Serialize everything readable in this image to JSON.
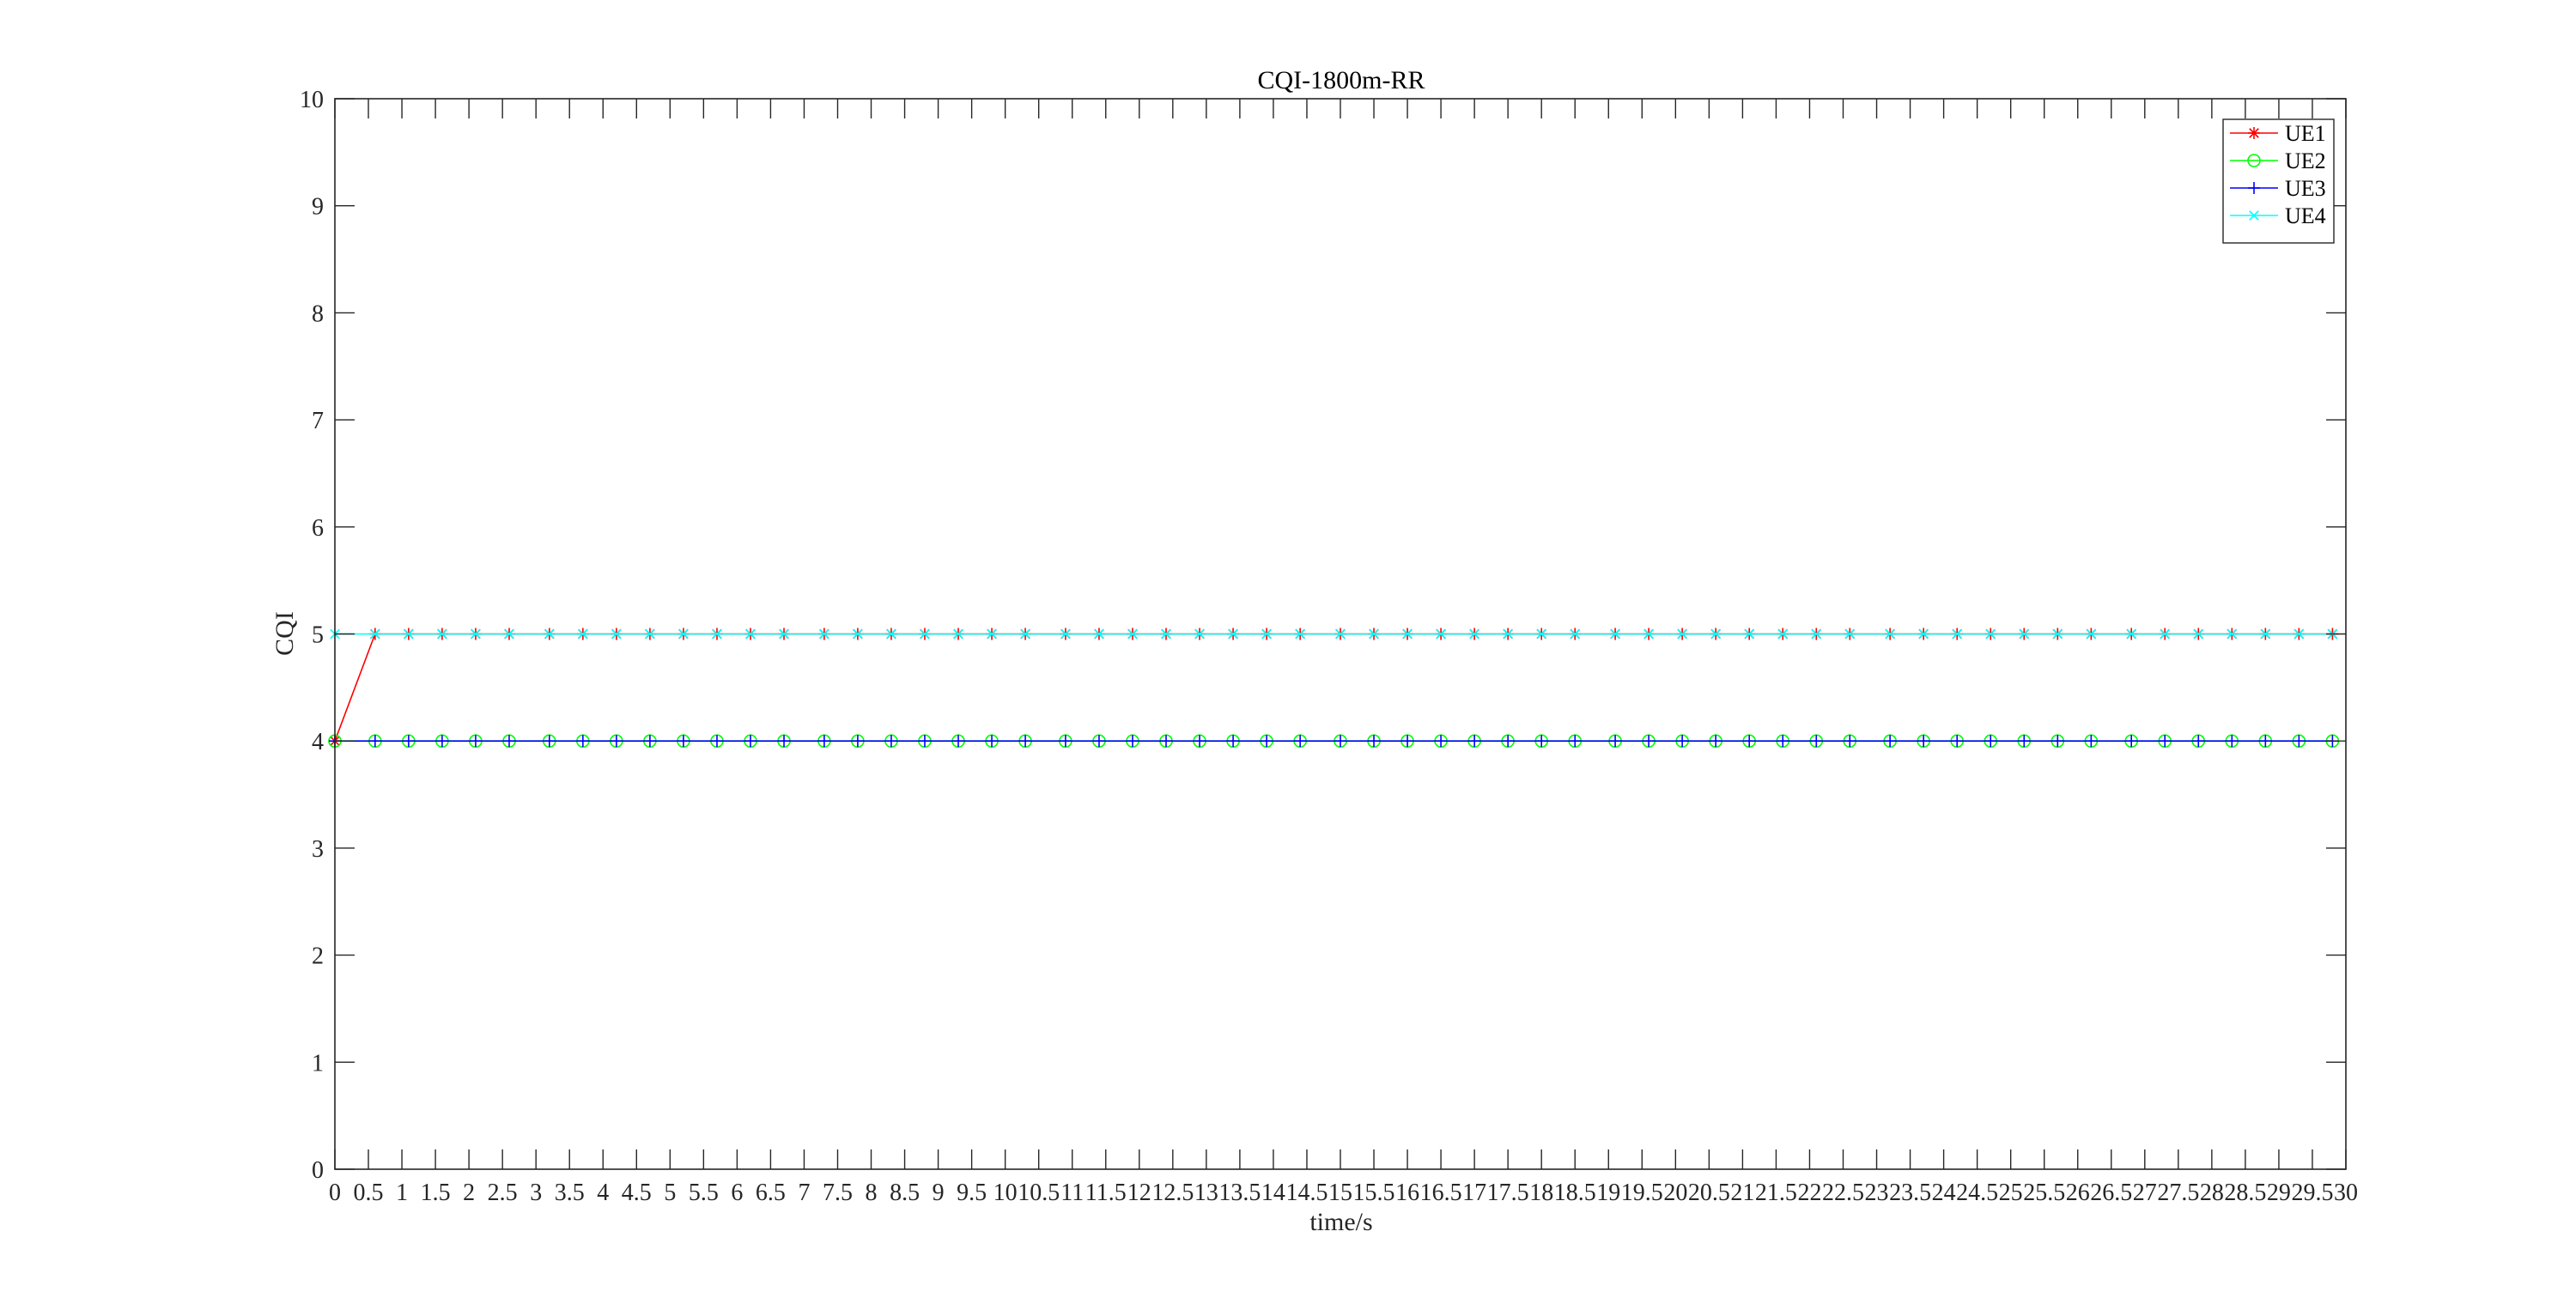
{
  "chart_data": {
    "type": "line",
    "title": "CQI-1800m-RR",
    "xlabel": "time/s",
    "ylabel": "CQI",
    "xlim": [
      0,
      30
    ],
    "ylim": [
      0,
      10
    ],
    "x_ticks": [
      0,
      0.5,
      1,
      1.5,
      2,
      2.5,
      3,
      3.5,
      4,
      4.5,
      5,
      5.5,
      6,
      6.5,
      7,
      7.5,
      8,
      8.5,
      9,
      9.5,
      10,
      10.5,
      11,
      11.5,
      12,
      12.5,
      13,
      13.5,
      14,
      14.5,
      15,
      15.5,
      16,
      16.5,
      17,
      17.5,
      18,
      18.5,
      19,
      19.5,
      20,
      20.5,
      21,
      21.5,
      22,
      22.5,
      23,
      23.5,
      24,
      24.5,
      25,
      25.5,
      26,
      26.5,
      27,
      27.5,
      28,
      28.5,
      29,
      29.5,
      30
    ],
    "x_tick_labels": [
      "0",
      "0.5",
      "1",
      "1.5",
      "2",
      "2.5",
      "3",
      "3.5",
      "4",
      "4.5",
      "5",
      "5.5",
      "6",
      "6.5",
      "7",
      "7.5",
      "8",
      "8.5",
      "9",
      "9.5",
      "10",
      "10.5",
      "11",
      "11.5",
      "12",
      "12.5",
      "13",
      "13.5",
      "14",
      "14.5",
      "15",
      "15.5",
      "16",
      "16.5",
      "17",
      "17.5",
      "18",
      "18.5",
      "19",
      "19.5",
      "20",
      "20.5",
      "21",
      "21.5",
      "22",
      "22.5",
      "23",
      "23.5",
      "24",
      "24.5",
      "25",
      "25.5",
      "26",
      "26.5",
      "27",
      "27.5",
      "28",
      "28.5",
      "29",
      "29.5",
      "30"
    ],
    "y_ticks": [
      0,
      1,
      2,
      3,
      4,
      5,
      6,
      7,
      8,
      9,
      10
    ],
    "y_tick_labels": [
      "0",
      "1",
      "2",
      "3",
      "4",
      "5",
      "6",
      "7",
      "8",
      "9",
      "10"
    ],
    "grid": false,
    "legend_position": "top-right",
    "x": [
      0,
      0.6,
      1.1,
      1.6,
      2.1,
      2.6,
      3.2,
      3.7,
      4.2,
      4.7,
      5.2,
      5.7,
      6.2,
      6.7,
      7.3,
      7.8,
      8.3,
      8.8,
      9.3,
      9.8,
      10.3,
      10.9,
      11.4,
      11.9,
      12.4,
      12.9,
      13.4,
      13.9,
      14.4,
      15.0,
      15.5,
      16.0,
      16.5,
      17.0,
      17.5,
      18.0,
      18.5,
      19.1,
      19.6,
      20.1,
      20.6,
      21.1,
      21.6,
      22.1,
      22.6,
      23.2,
      23.7,
      24.2,
      24.7,
      25.2,
      25.7,
      26.2,
      26.8,
      27.3,
      27.8,
      28.3,
      28.8,
      29.3,
      29.8
    ],
    "series": [
      {
        "name": "UE1",
        "color": "#ff0000",
        "marker": "asterisk",
        "values": [
          4,
          5,
          5,
          5,
          5,
          5,
          5,
          5,
          5,
          5,
          5,
          5,
          5,
          5,
          5,
          5,
          5,
          5,
          5,
          5,
          5,
          5,
          5,
          5,
          5,
          5,
          5,
          5,
          5,
          5,
          5,
          5,
          5,
          5,
          5,
          5,
          5,
          5,
          5,
          5,
          5,
          5,
          5,
          5,
          5,
          5,
          5,
          5,
          5,
          5,
          5,
          5,
          5,
          5,
          5,
          5,
          5,
          5,
          5
        ]
      },
      {
        "name": "UE2",
        "color": "#00ff00",
        "marker": "circle",
        "values": [
          4,
          4,
          4,
          4,
          4,
          4,
          4,
          4,
          4,
          4,
          4,
          4,
          4,
          4,
          4,
          4,
          4,
          4,
          4,
          4,
          4,
          4,
          4,
          4,
          4,
          4,
          4,
          4,
          4,
          4,
          4,
          4,
          4,
          4,
          4,
          4,
          4,
          4,
          4,
          4,
          4,
          4,
          4,
          4,
          4,
          4,
          4,
          4,
          4,
          4,
          4,
          4,
          4,
          4,
          4,
          4,
          4,
          4,
          4
        ]
      },
      {
        "name": "UE3",
        "color": "#0000ff",
        "marker": "plus",
        "values": [
          4,
          4,
          4,
          4,
          4,
          4,
          4,
          4,
          4,
          4,
          4,
          4,
          4,
          4,
          4,
          4,
          4,
          4,
          4,
          4,
          4,
          4,
          4,
          4,
          4,
          4,
          4,
          4,
          4,
          4,
          4,
          4,
          4,
          4,
          4,
          4,
          4,
          4,
          4,
          4,
          4,
          4,
          4,
          4,
          4,
          4,
          4,
          4,
          4,
          4,
          4,
          4,
          4,
          4,
          4,
          4,
          4,
          4,
          4
        ]
      },
      {
        "name": "UE4",
        "color": "#00ffff",
        "marker": "cross",
        "values": [
          5,
          5,
          5,
          5,
          5,
          5,
          5,
          5,
          5,
          5,
          5,
          5,
          5,
          5,
          5,
          5,
          5,
          5,
          5,
          5,
          5,
          5,
          5,
          5,
          5,
          5,
          5,
          5,
          5,
          5,
          5,
          5,
          5,
          5,
          5,
          5,
          5,
          5,
          5,
          5,
          5,
          5,
          5,
          5,
          5,
          5,
          5,
          5,
          5,
          5,
          5,
          5,
          5,
          5,
          5,
          5,
          5,
          5,
          5
        ]
      }
    ]
  }
}
